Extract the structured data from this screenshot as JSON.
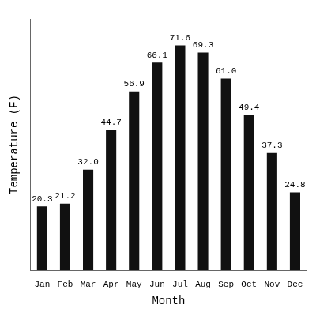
{
  "chart_data": {
    "type": "bar",
    "categories": [
      "Jan",
      "Feb",
      "Mar",
      "Apr",
      "May",
      "Jun",
      "Jul",
      "Aug",
      "Sep",
      "Oct",
      "Nov",
      "Dec"
    ],
    "values": [
      20.3,
      21.2,
      32.0,
      44.7,
      56.9,
      66.1,
      71.6,
      69.3,
      61.0,
      49.4,
      37.3,
      24.8
    ],
    "value_labels": [
      "20.3",
      "21.2",
      "32.0",
      "44.7",
      "56.9",
      "66.1",
      "71.6",
      "69.3",
      "61.0",
      "49.4",
      "37.3",
      "24.8"
    ],
    "color": "#111111",
    "x_label": "Month",
    "y_label": "Temperature (F)",
    "ylim": [
      0,
      80
    ],
    "grid": false,
    "data_labels": true,
    "tick_labels": "x"
  }
}
